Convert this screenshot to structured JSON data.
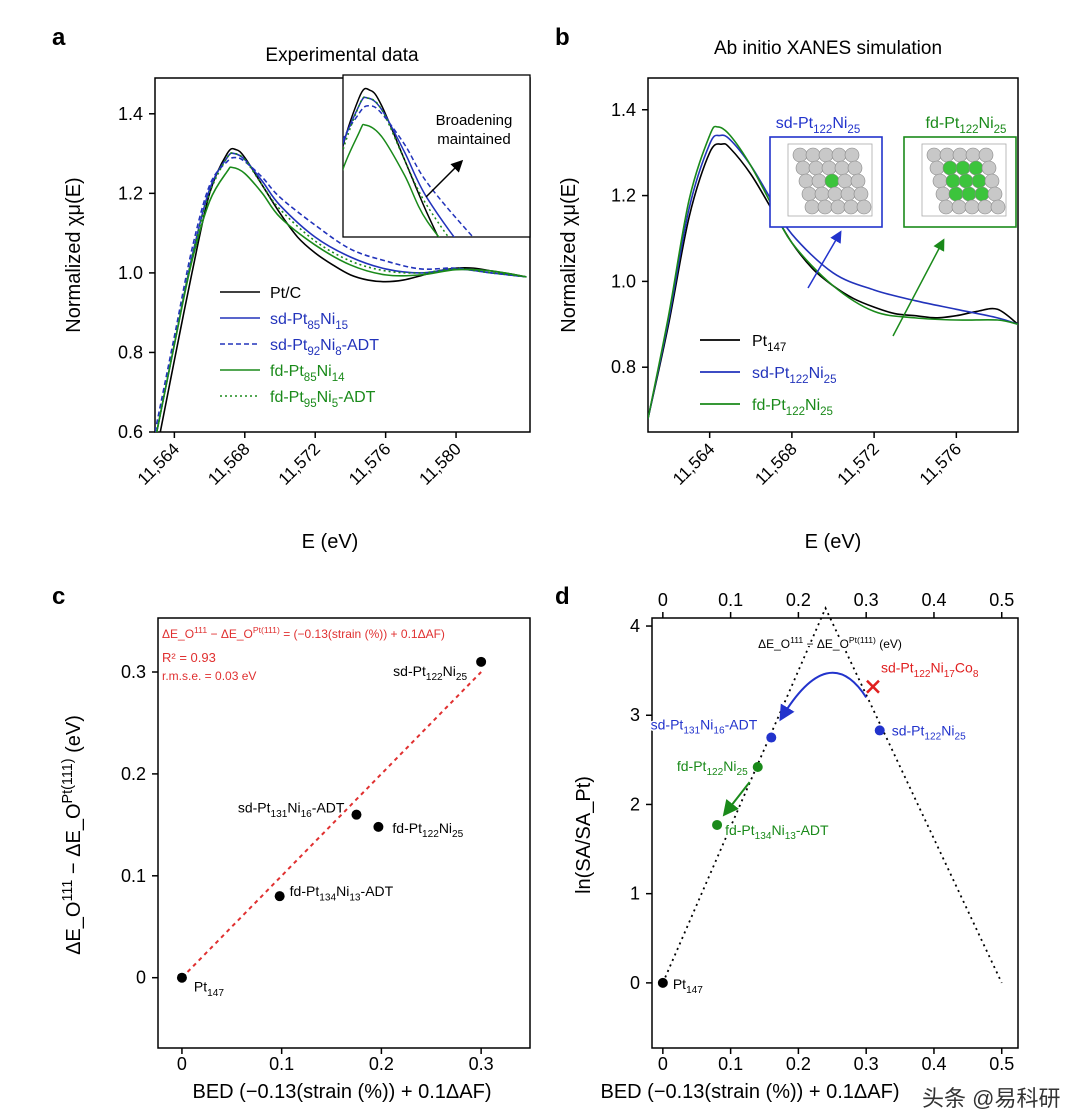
{
  "watermark": "头条 @易科研",
  "chart_data": [
    {
      "panel": "a",
      "type": "line",
      "title": "Experimental data",
      "xlabel": "E (eV)",
      "ylabel": "Normalized χμ(E)",
      "xlim": [
        11562.9,
        11584.2
      ],
      "ylim": [
        0.6,
        1.49
      ],
      "xticks": [
        11564,
        11568,
        11572,
        11576,
        11580
      ],
      "xtick_labels": [
        "11,564",
        "11,568",
        "11,572",
        "11,576",
        "11,580"
      ],
      "yticks": [
        0.6,
        0.8,
        1.0,
        1.2,
        1.4
      ],
      "ytick_labels": [
        "0.6",
        "0.8",
        "1.0",
        "1.2",
        "1.4"
      ],
      "legend": "bottom-left",
      "inset_annotation": "Broadening maintained",
      "series": [
        {
          "name": "Pt/C",
          "color": "#000000",
          "style": "solid",
          "x": [
            11563.2,
            11564,
            11565,
            11566,
            11567,
            11567.5,
            11568,
            11569,
            11570,
            11571,
            11572,
            11573,
            11574,
            11575,
            11576,
            11577,
            11578,
            11579,
            11580,
            11581,
            11582,
            11583,
            11584
          ],
          "y": [
            0.6,
            0.78,
            1.0,
            1.2,
            1.3,
            1.31,
            1.29,
            1.22,
            1.15,
            1.09,
            1.05,
            1.02,
            0.995,
            0.982,
            0.978,
            0.982,
            0.993,
            1.005,
            1.012,
            1.012,
            1.005,
            0.998,
            0.99
          ]
        },
        {
          "name": "sd-Pt_{85}Ni_{15}",
          "color": "#2233bb",
          "style": "solid",
          "x": [
            11563.0,
            11564,
            11565,
            11566,
            11567,
            11567.4,
            11568,
            11569,
            11570,
            11572,
            11574,
            11576,
            11578,
            11580,
            11582,
            11584
          ],
          "y": [
            0.6,
            0.82,
            1.04,
            1.21,
            1.29,
            1.3,
            1.285,
            1.23,
            1.17,
            1.09,
            1.04,
            1.01,
            1.0,
            1.01,
            1.0,
            0.99
          ]
        },
        {
          "name": "sd-Pt_{92}Ni_{8}-ADT",
          "color": "#2233bb",
          "style": "dashed",
          "x": [
            11562.9,
            11564,
            11565,
            11566,
            11567,
            11567.5,
            11568,
            11569,
            11570,
            11572,
            11574,
            11576,
            11578,
            11580,
            11582,
            11584
          ],
          "y": [
            0.6,
            0.84,
            1.06,
            1.22,
            1.28,
            1.29,
            1.28,
            1.24,
            1.19,
            1.12,
            1.06,
            1.03,
            1.01,
            1.012,
            1.0,
            0.99
          ]
        },
        {
          "name": "fd-Pt_{85}Ni_{14}",
          "color": "#1a8a1a",
          "style": "solid",
          "x": [
            11563.0,
            11564,
            11565,
            11566,
            11567,
            11567.3,
            11568,
            11569,
            11570,
            11572,
            11574,
            11576,
            11578,
            11580,
            11582,
            11584
          ],
          "y": [
            0.6,
            0.82,
            1.03,
            1.18,
            1.255,
            1.265,
            1.25,
            1.2,
            1.14,
            1.07,
            1.02,
            0.995,
            0.995,
            1.008,
            1.005,
            0.99
          ]
        },
        {
          "name": "fd-Pt_{95}Ni_{5}-ADT",
          "color": "#1a8a1a",
          "style": "dotted",
          "x": [
            11563.0,
            11564,
            11565,
            11566,
            11567,
            11567.4,
            11568,
            11569,
            11570,
            11572,
            11574,
            11576,
            11578,
            11580,
            11582,
            11584
          ],
          "y": [
            0.6,
            0.82,
            1.04,
            1.2,
            1.29,
            1.3,
            1.285,
            1.22,
            1.16,
            1.08,
            1.03,
            1.005,
            1.0,
            1.01,
            1.0,
            0.99
          ]
        }
      ]
    },
    {
      "panel": "b",
      "type": "line",
      "title": "Ab initio XANES simulation",
      "xlabel": "E (eV)",
      "ylabel": "Normalized χμ(E)",
      "xlim": [
        11561.0,
        11579.0
      ],
      "ylim": [
        0.649,
        1.474
      ],
      "xticks": [
        11564,
        11568,
        11572,
        11576
      ],
      "xtick_labels": [
        "11,564",
        "11,568",
        "11,572",
        "11,576"
      ],
      "yticks": [
        0.8,
        1.0,
        1.2,
        1.4
      ],
      "ytick_labels": [
        "0.8",
        "1.0",
        "1.2",
        "1.4"
      ],
      "legend": "bottom-left",
      "structure_labels": [
        "sd-Pt_{122}Ni_{25}",
        "fd-Pt_{122}Ni_{25}"
      ],
      "series": [
        {
          "name": "Pt_{147}",
          "color": "#000000",
          "style": "solid",
          "x": [
            11561,
            11562,
            11563,
            11564,
            11564.6,
            11565,
            11566,
            11567,
            11568,
            11569,
            11570,
            11571,
            11572,
            11573,
            11574,
            11575,
            11576,
            11577,
            11578,
            11579
          ],
          "y": [
            0.68,
            0.9,
            1.15,
            1.3,
            1.32,
            1.31,
            1.25,
            1.17,
            1.09,
            1.03,
            0.99,
            0.96,
            0.94,
            0.925,
            0.92,
            0.915,
            0.92,
            0.93,
            0.935,
            0.9
          ]
        },
        {
          "name": "sd-Pt_{122}Ni_{25}",
          "color": "#2233bb",
          "style": "solid",
          "x": [
            11561,
            11562,
            11563,
            11564,
            11564.5,
            11565,
            11566,
            11567,
            11568,
            11570,
            11572,
            11574,
            11576,
            11578,
            11579
          ],
          "y": [
            0.68,
            0.91,
            1.17,
            1.32,
            1.34,
            1.33,
            1.27,
            1.19,
            1.11,
            1.02,
            0.98,
            0.955,
            0.935,
            0.915,
            0.9
          ]
        },
        {
          "name": "fd-Pt_{122}Ni_{25}",
          "color": "#1a8a1a",
          "style": "solid",
          "x": [
            11561,
            11562,
            11563,
            11564,
            11564.4,
            11565,
            11566,
            11567,
            11568,
            11570,
            11572,
            11574,
            11576,
            11578,
            11579
          ],
          "y": [
            0.68,
            0.92,
            1.19,
            1.34,
            1.36,
            1.34,
            1.27,
            1.18,
            1.09,
            0.99,
            0.93,
            0.915,
            0.91,
            0.91,
            0.9
          ]
        }
      ]
    },
    {
      "panel": "c",
      "type": "scatter",
      "xlabel": "BED (−0.13(strain (%)) + 0.1ΔAF)",
      "ylabel": "ΔE_O^(111) − ΔE_O^Pt(111) (eV)",
      "xlim": [
        -0.024,
        0.349
      ],
      "ylim": [
        -0.069,
        0.353
      ],
      "xticks": [
        0,
        0.1,
        0.2,
        0.3
      ],
      "xtick_labels": [
        "0",
        "0.1",
        "0.2",
        "0.3"
      ],
      "yticks": [
        0,
        0.1,
        0.2,
        0.3
      ],
      "ytick_labels": [
        "0",
        "0.1",
        "0.2",
        "0.3"
      ],
      "fit_equation": "ΔE_O^(111) − ΔE_O^Pt(111) = (−0.13(strain (%)) + 0.1ΔAF)",
      "r_squared": "R² = 0.93",
      "rmse": "r.m.s.e. = 0.03 eV",
      "fit_line": {
        "x": [
          0,
          0.3
        ],
        "y": [
          0,
          0.3
        ],
        "color": "#e03030"
      },
      "points": [
        {
          "label": "Pt_{147}",
          "x": 0,
          "y": 0
        },
        {
          "label": "fd-Pt_{134}Ni_{13}-ADT",
          "x": 0.098,
          "y": 0.08
        },
        {
          "label": "sd-Pt_{131}Ni_{16}-ADT",
          "x": 0.175,
          "y": 0.16
        },
        {
          "label": "fd-Pt_{122}Ni_{25}",
          "x": 0.197,
          "y": 0.148
        },
        {
          "label": "sd-Pt_{122}Ni_{25}",
          "x": 0.3,
          "y": 0.31
        }
      ]
    },
    {
      "panel": "d",
      "type": "scatter",
      "xlabel": "BED (−0.13(strain (%)) + 0.1ΔAF)",
      "top_xlabel": "ΔE_O^(111) − ΔE_O^Pt(111) (eV)",
      "ylabel": "ln(SA/SA_Pt)",
      "xlim": [
        -0.016,
        0.524
      ],
      "ylim": [
        -0.73,
        4.09
      ],
      "xticks": [
        0,
        0.1,
        0.2,
        0.3,
        0.4,
        0.5
      ],
      "xtick_labels": [
        "0",
        "0.1",
        "0.2",
        "0.3",
        "0.4",
        "0.5"
      ],
      "yticks": [
        0,
        1,
        2,
        3,
        4
      ],
      "ytick_labels": [
        "0",
        "1",
        "2",
        "3",
        "4"
      ],
      "volcano": {
        "x": [
          0,
          0.24,
          0.5
        ],
        "y": [
          0,
          4.2,
          0
        ]
      },
      "points": [
        {
          "label": "Pt_{147}",
          "x": 0,
          "y": 0,
          "color": "#000000",
          "marker": "circle"
        },
        {
          "label": "fd-Pt_{134}Ni_{13}-ADT",
          "x": 0.08,
          "y": 1.77,
          "color": "#1a8a1a",
          "marker": "circle"
        },
        {
          "label": "fd-Pt_{122}Ni_{25}",
          "x": 0.14,
          "y": 2.42,
          "color": "#1a8a1a",
          "marker": "circle"
        },
        {
          "label": "sd-Pt_{131}Ni_{16}-ADT",
          "x": 0.16,
          "y": 2.75,
          "color": "#2233cc",
          "marker": "circle"
        },
        {
          "label": "sd-Pt_{122}Ni_{25}",
          "x": 0.32,
          "y": 2.83,
          "color": "#2233cc",
          "marker": "circle"
        },
        {
          "label": "sd-Pt_{122}Ni_{17}Co_{8}",
          "x": 0.31,
          "y": 3.32,
          "color": "#e02020",
          "marker": "cross"
        }
      ]
    }
  ]
}
